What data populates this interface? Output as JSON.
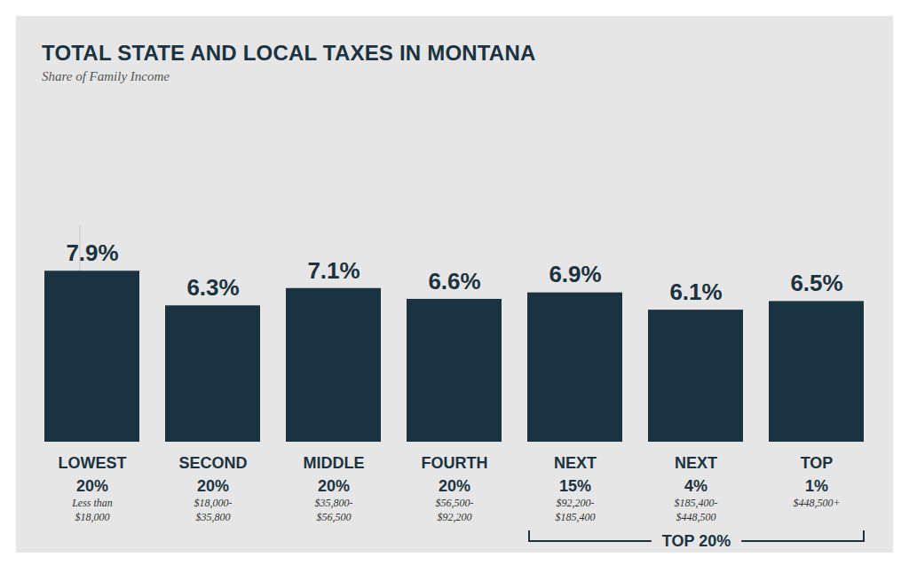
{
  "chart_data": {
    "type": "bar",
    "title": "TOTAL STATE AND LOCAL TAXES IN MONTANA",
    "subtitle": "Share of Family Income",
    "categories": [
      "LOWEST 20%",
      "SECOND 20%",
      "MIDDLE 20%",
      "FOURTH 20%",
      "NEXT 15%",
      "NEXT 4%",
      "TOP 1%"
    ],
    "category_ranges": [
      "Less than $18,000",
      "$18,000-$35,800",
      "$35,800-$56,500",
      "$56,500-$92,200",
      "$92,200-$185,400",
      "$185,400-$448,500",
      "$448,500+"
    ],
    "values": [
      7.9,
      6.3,
      7.1,
      6.6,
      6.9,
      6.1,
      6.5
    ],
    "value_labels": [
      "7.9%",
      "6.3%",
      "7.1%",
      "6.6%",
      "6.9%",
      "6.1%",
      "6.5%"
    ],
    "data_labels": true,
    "color": "#1b3340",
    "ylim": [
      0,
      10
    ],
    "tick_labels": "x",
    "grid": false,
    "group": {
      "label": "TOP 20%",
      "categories": [
        "NEXT 15%",
        "NEXT 4%",
        "TOP 1%"
      ]
    }
  }
}
